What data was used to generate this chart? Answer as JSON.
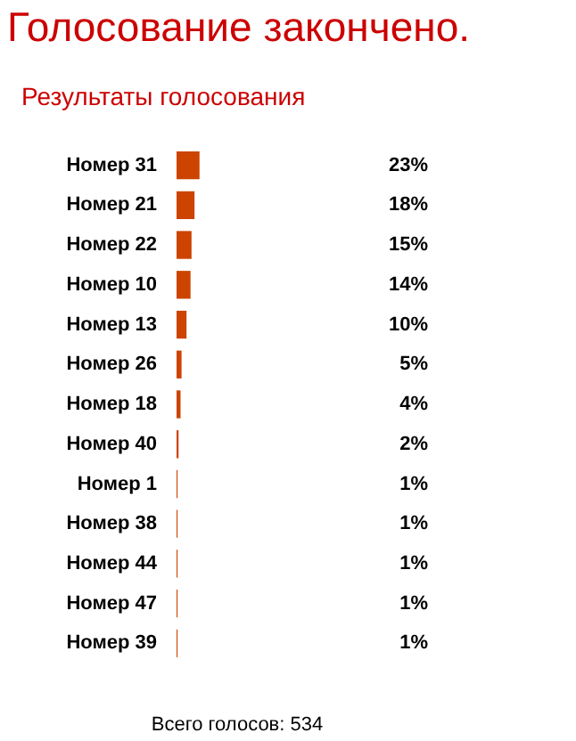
{
  "chart_data": {
    "type": "bar",
    "orientation": "horizontal",
    "title": "Голосование закончено.",
    "subtitle": "Результаты голосования",
    "categories": [
      "Номер 31",
      "Номер 21",
      "Номер 22",
      "Номер 10",
      "Номер 13",
      "Номер 26",
      "Номер 18",
      "Номер 40",
      "Номер 1",
      "Номер 38",
      "Номер 44",
      "Номер 47",
      "Номер 39"
    ],
    "values": [
      23,
      18,
      15,
      14,
      10,
      5,
      4,
      2,
      1,
      1,
      1,
      1,
      1
    ],
    "value_labels": [
      "23%",
      "18%",
      "15%",
      "14%",
      "10%",
      "5%",
      "4%",
      "2%",
      "1%",
      "1%",
      "1%",
      "1%",
      "1%"
    ],
    "color": "#cc4400",
    "tick_labels": "y",
    "legend": false,
    "annotations": [
      "Всего голосов: 534"
    ]
  }
}
